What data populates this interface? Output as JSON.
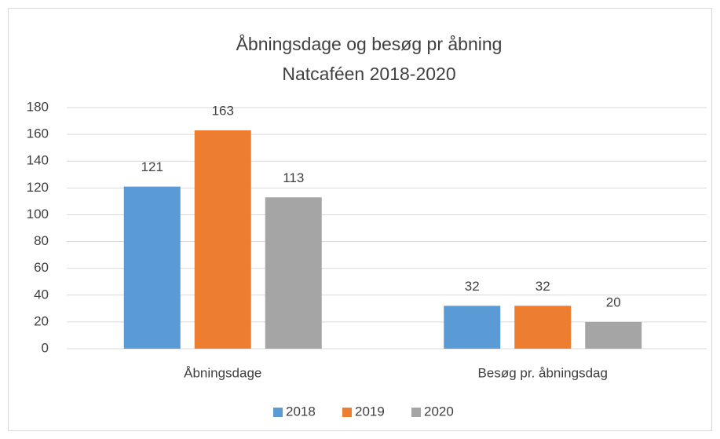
{
  "chart_data": {
    "type": "bar",
    "title": "Åbningsdage og besøg pr åbning",
    "subtitle": "Natcaféen 2018-2020",
    "categories": [
      "Åbningsdage",
      "Besøg pr. åbningsdag"
    ],
    "series": [
      {
        "name": "2018",
        "color": "#5b9bd5",
        "values": [
          121,
          32
        ]
      },
      {
        "name": "2019",
        "color": "#ed7d31",
        "values": [
          163,
          32
        ]
      },
      {
        "name": "2020",
        "color": "#a5a5a5",
        "values": [
          113,
          20
        ]
      }
    ],
    "ylim": [
      0,
      180
    ],
    "yticks": [
      0,
      20,
      40,
      60,
      80,
      100,
      120,
      140,
      160,
      180
    ],
    "grid": true,
    "legend": "bottom"
  }
}
